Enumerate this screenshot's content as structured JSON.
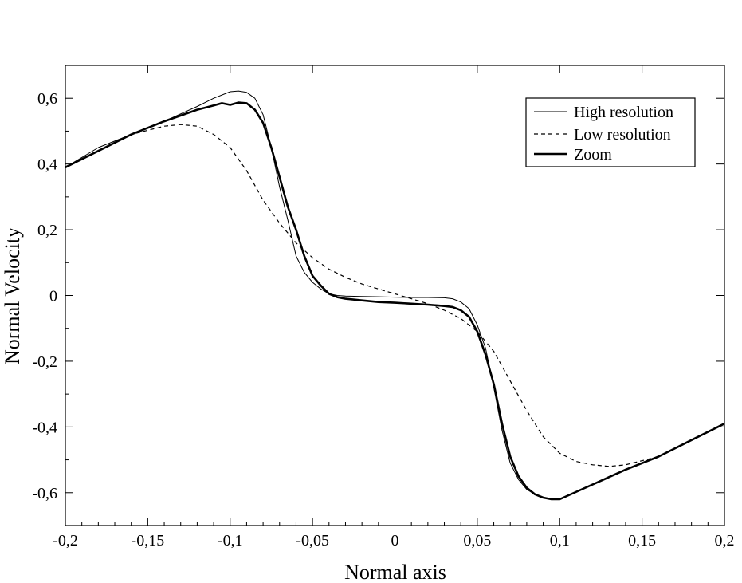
{
  "chart_data": {
    "type": "line",
    "xlabel": "Normal axis",
    "ylabel": "Normal Velocity",
    "xlim": [
      -0.2,
      0.2
    ],
    "ylim": [
      -0.7,
      0.7
    ],
    "x_ticks": [
      -0.2,
      -0.15,
      -0.1,
      -0.05,
      0,
      0.05,
      0.1,
      0.15,
      0.2
    ],
    "x_tick_labels": [
      "-0,2",
      "-0,15",
      "-0,1",
      "-0,05",
      "0",
      "0,05",
      "0,1",
      "0,15",
      "0,2"
    ],
    "y_ticks": [
      -0.6,
      -0.4,
      -0.2,
      0,
      0.2,
      0.4,
      0.6
    ],
    "y_tick_labels": [
      "-0,6",
      "-0,4",
      "-0,2",
      "0",
      "0,2",
      "0,4",
      "0,6"
    ],
    "grid": false,
    "legend_position": "top-right",
    "series": [
      {
        "name": "High resolution",
        "style": "thin-solid",
        "x": [
          -0.2,
          -0.18,
          -0.16,
          -0.14,
          -0.12,
          -0.11,
          -0.1,
          -0.095,
          -0.09,
          -0.085,
          -0.08,
          -0.075,
          -0.07,
          -0.065,
          -0.06,
          -0.055,
          -0.05,
          -0.045,
          -0.04,
          -0.035,
          -0.03,
          -0.02,
          -0.01,
          0,
          0.01,
          0.02,
          0.03,
          0.035,
          0.04,
          0.045,
          0.05,
          0.055,
          0.06,
          0.065,
          0.07,
          0.075,
          0.08,
          0.085,
          0.09,
          0.095,
          0.1,
          0.12,
          0.14,
          0.16,
          0.18,
          0.2
        ],
        "y": [
          0.39,
          0.45,
          0.49,
          0.53,
          0.575,
          0.6,
          0.62,
          0.622,
          0.618,
          0.6,
          0.55,
          0.45,
          0.33,
          0.23,
          0.12,
          0.07,
          0.04,
          0.02,
          0.005,
          0.0,
          -0.002,
          -0.003,
          -0.004,
          -0.005,
          -0.006,
          -0.006,
          -0.007,
          -0.01,
          -0.02,
          -0.04,
          -0.09,
          -0.16,
          -0.28,
          -0.41,
          -0.51,
          -0.56,
          -0.59,
          -0.605,
          -0.615,
          -0.62,
          -0.62,
          -0.575,
          -0.53,
          -0.49,
          -0.44,
          -0.39
        ]
      },
      {
        "name": "Low resolution",
        "style": "dashed",
        "x": [
          -0.2,
          -0.18,
          -0.16,
          -0.14,
          -0.13,
          -0.12,
          -0.11,
          -0.1,
          -0.09,
          -0.08,
          -0.07,
          -0.06,
          -0.05,
          -0.04,
          -0.03,
          -0.02,
          -0.01,
          0,
          0.01,
          0.02,
          0.03,
          0.04,
          0.05,
          0.06,
          0.07,
          0.08,
          0.09,
          0.1,
          0.11,
          0.12,
          0.13,
          0.14,
          0.16,
          0.18,
          0.2
        ],
        "y": [
          0.39,
          0.44,
          0.49,
          0.515,
          0.52,
          0.515,
          0.49,
          0.45,
          0.38,
          0.29,
          0.22,
          0.16,
          0.115,
          0.08,
          0.055,
          0.035,
          0.02,
          0.005,
          -0.01,
          -0.025,
          -0.045,
          -0.07,
          -0.11,
          -0.17,
          -0.26,
          -0.35,
          -0.43,
          -0.48,
          -0.505,
          -0.515,
          -0.52,
          -0.515,
          -0.49,
          -0.44,
          -0.39
        ]
      },
      {
        "name": "Zoom",
        "style": "thick-solid",
        "x": [
          -0.2,
          -0.18,
          -0.16,
          -0.14,
          -0.12,
          -0.11,
          -0.105,
          -0.1,
          -0.095,
          -0.09,
          -0.085,
          -0.08,
          -0.075,
          -0.07,
          -0.065,
          -0.06,
          -0.055,
          -0.05,
          -0.045,
          -0.04,
          -0.035,
          -0.03,
          -0.02,
          -0.01,
          0,
          0.01,
          0.02,
          0.03,
          0.035,
          0.04,
          0.045,
          0.05,
          0.055,
          0.06,
          0.065,
          0.07,
          0.075,
          0.08,
          0.085,
          0.09,
          0.095,
          0.1,
          0.12,
          0.14,
          0.16,
          0.18,
          0.2
        ],
        "y": [
          0.39,
          0.44,
          0.49,
          0.53,
          0.565,
          0.578,
          0.585,
          0.58,
          0.587,
          0.585,
          0.565,
          0.525,
          0.45,
          0.36,
          0.27,
          0.2,
          0.12,
          0.06,
          0.03,
          0.005,
          -0.005,
          -0.01,
          -0.015,
          -0.02,
          -0.022,
          -0.025,
          -0.028,
          -0.032,
          -0.035,
          -0.045,
          -0.065,
          -0.11,
          -0.18,
          -0.27,
          -0.39,
          -0.49,
          -0.55,
          -0.585,
          -0.605,
          -0.615,
          -0.62,
          -0.62,
          -0.575,
          -0.53,
          -0.49,
          -0.44,
          -0.39
        ]
      }
    ]
  }
}
